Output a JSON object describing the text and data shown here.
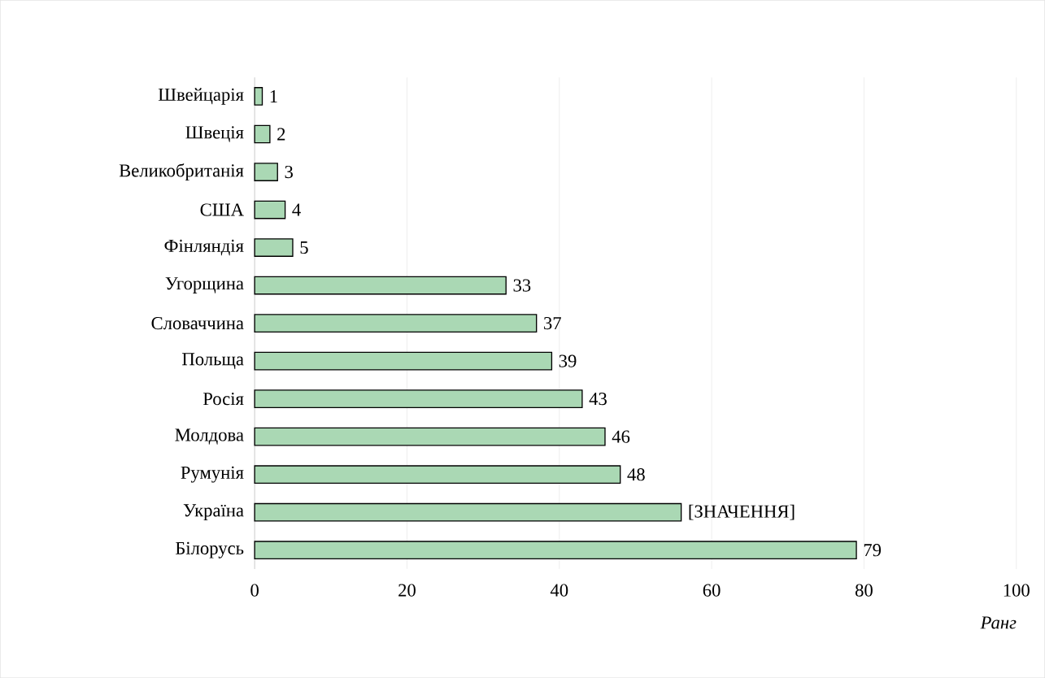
{
  "chart_data": {
    "type": "bar",
    "orientation": "horizontal",
    "xlabel": "Ранг",
    "categories": [
      "Швейцарія",
      "Швеція",
      "Великобританія",
      "США",
      "Фінляндія",
      "Угорщина",
      "Словаччина",
      "Польща",
      "Росія",
      "Молдова",
      "Румунія",
      "Україна",
      "Білорусь"
    ],
    "values": [
      1,
      2,
      3,
      4,
      5,
      33,
      37,
      39,
      43,
      46,
      48,
      56,
      79
    ],
    "value_labels": [
      "1",
      "2",
      "3",
      "4",
      "5",
      "33",
      "37",
      "39",
      "43",
      "46",
      "48",
      "[ЗНАЧЕННЯ]",
      "79"
    ],
    "color": "#aad8b4",
    "xlim": [
      0,
      100
    ],
    "xticks": [
      0,
      20,
      40,
      60,
      80,
      100
    ],
    "grid": "x"
  }
}
